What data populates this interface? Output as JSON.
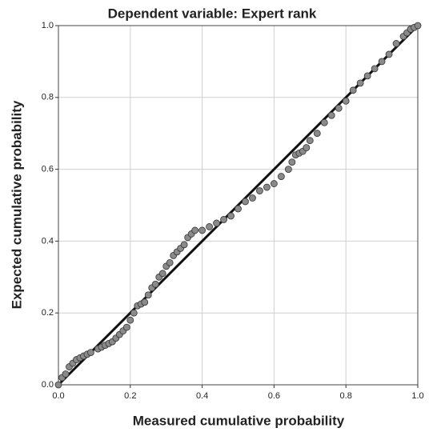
{
  "chart_data": {
    "type": "scatter",
    "title": "Dependent variable: Expert rank",
    "x_label": "Measured cumulative probability",
    "y_label": "Expected cumulative probability",
    "color": "#8a8a8a",
    "grid": true,
    "xlim": [
      0,
      1
    ],
    "ylim": [
      0,
      1
    ],
    "xticks": [
      {
        "value": 0,
        "label": "0.0"
      },
      0.2,
      0.4,
      0.6,
      0.8,
      {
        "value": 1,
        "label": "1.0"
      }
    ],
    "yticks": [
      {
        "value": 0,
        "label": "0.0"
      },
      0.2,
      0.4,
      0.6,
      0.8,
      {
        "value": 1,
        "label": "1.0"
      }
    ],
    "x": [
      0,
      0.01,
      0.02,
      0.03,
      0.04,
      0.05,
      0.06,
      0.07,
      0.08,
      0.09,
      0.11,
      0.12,
      0.13,
      0.14,
      0.15,
      0.16,
      0.17,
      0.18,
      0.19,
      0.2,
      0.21,
      0.22,
      0.23,
      0.24,
      0.25,
      0.26,
      0.27,
      0.28,
      0.29,
      0.3,
      0.31,
      0.32,
      0.33,
      0.34,
      0.35,
      0.36,
      0.37,
      0.38,
      0.4,
      0.42,
      0.44,
      0.46,
      0.48,
      0.5,
      0.52,
      0.54,
      0.56,
      0.58,
      0.6,
      0.62,
      0.64,
      0.65,
      0.66,
      0.67,
      0.68,
      0.69,
      0.7,
      0.72,
      0.74,
      0.76,
      0.78,
      0.8,
      0.82,
      0.84,
      0.86,
      0.88,
      0.9,
      0.92,
      0.94,
      0.96,
      0.97,
      0.98,
      0.99,
      1.0
    ],
    "values": [
      0,
      0.02,
      0.03,
      0.05,
      0.06,
      0.07,
      0.075,
      0.08,
      0.085,
      0.09,
      0.1,
      0.105,
      0.11,
      0.115,
      0.12,
      0.13,
      0.14,
      0.15,
      0.16,
      0.18,
      0.2,
      0.22,
      0.225,
      0.23,
      0.25,
      0.27,
      0.28,
      0.3,
      0.31,
      0.33,
      0.34,
      0.36,
      0.37,
      0.38,
      0.39,
      0.41,
      0.42,
      0.43,
      0.43,
      0.44,
      0.45,
      0.46,
      0.47,
      0.49,
      0.51,
      0.52,
      0.54,
      0.55,
      0.56,
      0.58,
      0.6,
      0.62,
      0.64,
      0.645,
      0.65,
      0.66,
      0.68,
      0.7,
      0.73,
      0.75,
      0.77,
      0.79,
      0.82,
      0.84,
      0.86,
      0.88,
      0.9,
      0.92,
      0.95,
      0.97,
      0.98,
      0.99,
      0.995,
      1.0
    ]
  }
}
